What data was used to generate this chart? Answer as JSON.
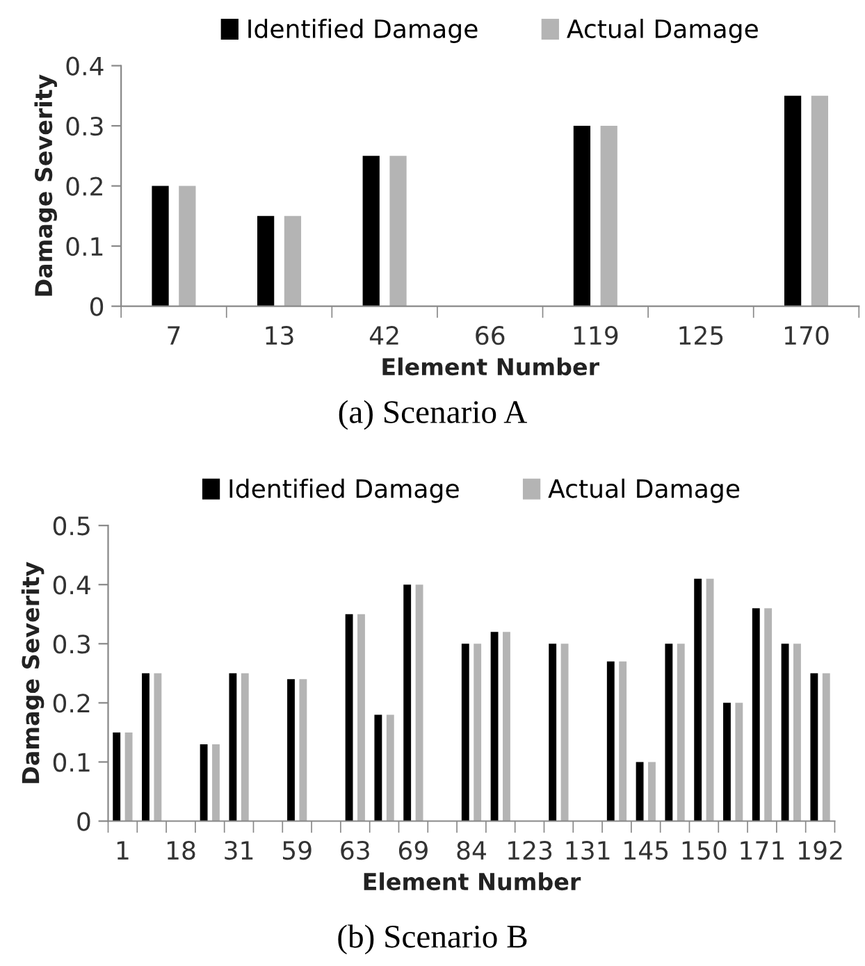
{
  "chart_data": [
    {
      "type": "bar",
      "xlabel": "Element Number",
      "ylabel": "Damage Severity",
      "categories": [
        "7",
        "13",
        "42",
        "66",
        "119",
        "125",
        "170"
      ],
      "series": [
        {
          "name": "Identified Damage",
          "color": "#000000",
          "values": [
            0.2,
            0.15,
            0.25,
            0,
            0.3,
            0,
            0.35
          ]
        },
        {
          "name": "Actual Damage",
          "color": "#b4b4b4",
          "values": [
            0.2,
            0.15,
            0.25,
            0,
            0.3,
            0,
            0.35
          ]
        }
      ],
      "ylim": [
        0,
        0.4
      ],
      "yticks": [
        {
          "value": 0,
          "label": "0"
        },
        0.1,
        0.2,
        0.3,
        0.4
      ],
      "legend": "top",
      "grid": false,
      "annotations": [
        "(a) Scenario A"
      ]
    },
    {
      "type": "bar",
      "xlabel": "Element Number",
      "ylabel": "Damage Severity",
      "categories": [
        "1",
        null,
        "18",
        null,
        "31",
        null,
        "59",
        null,
        "63",
        null,
        "69",
        null,
        "84",
        null,
        "123",
        null,
        "131",
        null,
        "145",
        null,
        "150",
        null,
        "171",
        null,
        "192"
      ],
      "series": [
        {
          "name": "Identified Damage",
          "color": "#000000",
          "values": [
            0.15,
            0.25,
            0,
            0.13,
            0.25,
            0,
            0.24,
            0,
            0.35,
            0.18,
            0.4,
            0,
            0.3,
            0.32,
            0,
            0.3,
            0,
            0.27,
            0.1,
            0.3,
            0.41,
            0.2,
            0.36,
            0.3,
            0.25
          ]
        },
        {
          "name": "Actual Damage",
          "color": "#b4b4b4",
          "values": [
            0.15,
            0.25,
            0,
            0.13,
            0.25,
            0,
            0.24,
            0,
            0.35,
            0.18,
            0.4,
            0,
            0.3,
            0.32,
            0,
            0.3,
            0,
            0.27,
            0.1,
            0.3,
            0.41,
            0.2,
            0.36,
            0.3,
            0.25
          ]
        }
      ],
      "ylim": [
        0,
        0.5
      ],
      "yticks": [
        {
          "value": 0,
          "label": "0"
        },
        0.1,
        0.2,
        0.3,
        0.4,
        0.5
      ],
      "legend": "top",
      "grid": false,
      "annotations": [
        "(b) Scenario B"
      ]
    }
  ]
}
